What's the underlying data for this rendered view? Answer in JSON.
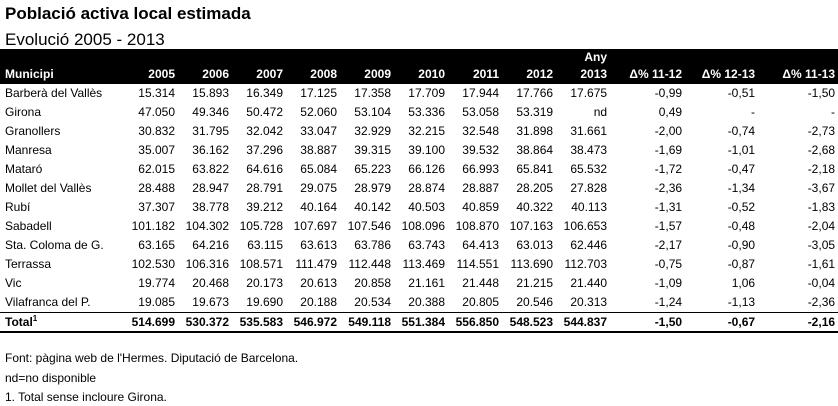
{
  "title": "Població activa local estimada",
  "subtitle": "Evolució 2005 - 2013",
  "table": {
    "any_label": "Any",
    "headers": [
      "Municipi",
      "2005",
      "2006",
      "2007",
      "2008",
      "2009",
      "2010",
      "2011",
      "2012",
      "2013",
      "Δ% 11-12",
      "Δ% 12-13",
      "Δ% 11-13"
    ],
    "rows": [
      [
        "Barberà del Vallès",
        "15.314",
        "15.893",
        "16.349",
        "17.125",
        "17.358",
        "17.709",
        "17.944",
        "17.766",
        "17.675",
        "-0,99",
        "-0,51",
        "-1,50"
      ],
      [
        "Girona",
        "47.050",
        "49.346",
        "50.472",
        "52.060",
        "53.104",
        "53.336",
        "53.058",
        "53.319",
        "nd",
        "0,49",
        "-",
        "-"
      ],
      [
        "Granollers",
        "30.832",
        "31.795",
        "32.042",
        "33.047",
        "32.929",
        "32.215",
        "32.548",
        "31.898",
        "31.661",
        "-2,00",
        "-0,74",
        "-2,73"
      ],
      [
        "Manresa",
        "35.007",
        "36.162",
        "37.296",
        "38.887",
        "39.315",
        "39.100",
        "39.532",
        "38.864",
        "38.473",
        "-1,69",
        "-1,01",
        "-2,68"
      ],
      [
        "Mataró",
        "62.015",
        "63.822",
        "64.616",
        "65.084",
        "65.223",
        "66.126",
        "66.993",
        "65.841",
        "65.532",
        "-1,72",
        "-0,47",
        "-2,18"
      ],
      [
        "Mollet del Vallès",
        "28.488",
        "28.947",
        "28.791",
        "29.075",
        "28.979",
        "28.874",
        "28.887",
        "28.205",
        "27.828",
        "-2,36",
        "-1,34",
        "-3,67"
      ],
      [
        "Rubí",
        "37.307",
        "38.778",
        "39.212",
        "40.164",
        "40.142",
        "40.503",
        "40.859",
        "40.322",
        "40.113",
        "-1,31",
        "-0,52",
        "-1,83"
      ],
      [
        "Sabadell",
        "101.182",
        "104.302",
        "105.728",
        "107.697",
        "107.546",
        "108.096",
        "108.870",
        "107.163",
        "106.653",
        "-1,57",
        "-0,48",
        "-2,04"
      ],
      [
        "Sta. Coloma de G.",
        "63.165",
        "64.216",
        "63.115",
        "63.613",
        "63.786",
        "63.743",
        "64.413",
        "63.013",
        "62.446",
        "-2,17",
        "-0,90",
        "-3,05"
      ],
      [
        "Terrassa",
        "102.530",
        "106.316",
        "108.571",
        "111.479",
        "112.448",
        "113.469",
        "114.551",
        "113.690",
        "112.703",
        "-0,75",
        "-0,87",
        "-1,61"
      ],
      [
        "Vic",
        "19.774",
        "20.468",
        "20.173",
        "20.613",
        "20.858",
        "21.161",
        "21.448",
        "21.215",
        "21.440",
        "-1,09",
        "1,06",
        "-0,04"
      ],
      [
        "Vilafranca del P.",
        "19.085",
        "19.673",
        "19.690",
        "20.188",
        "20.534",
        "20.388",
        "20.805",
        "20.546",
        "20.313",
        "-1,24",
        "-1,13",
        "-2,36"
      ]
    ],
    "total": [
      "Total",
      "514.699",
      "530.372",
      "535.583",
      "546.972",
      "549.118",
      "551.384",
      "556.850",
      "548.523",
      "544.837",
      "-1,50",
      "-0,67",
      "-2,16"
    ],
    "total_sup": "1"
  },
  "notes": [
    "Font: pàgina web de l'Hermes. Diputació de Barcelona.",
    "nd=no disponible",
    "1. Total sense incloure Girona."
  ]
}
